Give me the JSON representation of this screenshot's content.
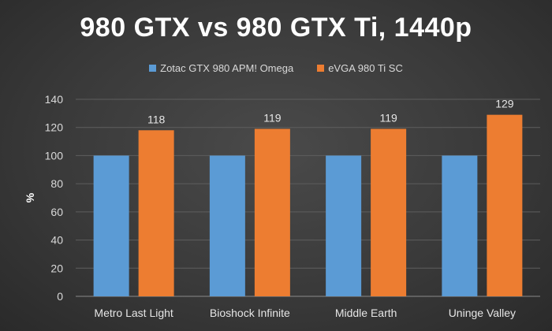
{
  "chart_data": {
    "type": "bar",
    "title": "980 GTX vs 980 GTX Ti, 1440p",
    "xlabel": "",
    "ylabel": "%",
    "ylim": [
      0,
      140
    ],
    "yticks": [
      "0",
      "20",
      "40",
      "60",
      "80",
      "100",
      "120",
      "140"
    ],
    "categories": [
      "Metro Last Light",
      "Bioshock Infinite",
      "Middle Earth",
      "Uninge Valley"
    ],
    "series": [
      {
        "name": "Zotac GTX 980 APM! Omega",
        "color": "#5b9bd5",
        "values": [
          100,
          100,
          100,
          100
        ],
        "data_labels": [
          "",
          "",
          "",
          ""
        ]
      },
      {
        "name": "eVGA 980 Ti SC",
        "color": "#ed7d31",
        "values": [
          118,
          119,
          119,
          129
        ],
        "data_labels": [
          "118",
          "119",
          "119",
          "129"
        ]
      }
    ],
    "grid": true,
    "legend_position": "top"
  }
}
